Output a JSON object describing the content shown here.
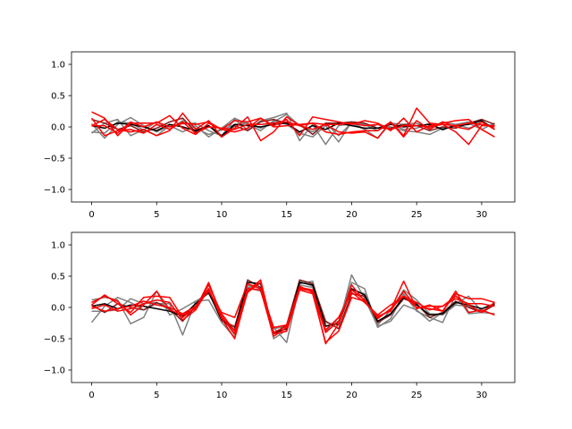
{
  "chart_data": [
    {
      "type": "line",
      "xlim": [
        -1.55,
        32.55
      ],
      "ylim": [
        -1.2,
        1.2
      ],
      "xticks": [
        0,
        5,
        10,
        15,
        20,
        25,
        30
      ],
      "yticks": [
        1.0,
        0.5,
        0.0,
        -0.5,
        -1.0
      ],
      "xtick_labels": [
        "0",
        "5",
        "10",
        "15",
        "20",
        "25",
        "30"
      ],
      "ytick_labels": [
        "1.0",
        "0.5",
        "0.0",
        "−0.5",
        "−1.0"
      ],
      "grid": false,
      "series": [
        {
          "color": "#7f7f7f",
          "values": [
            -0.08,
            -0.1,
            0.08,
            0.06,
            -0.05,
            0.08,
            -0.04,
            0.1,
            -0.02,
            -0.12,
            -0.05,
            0.04,
            0.06,
            -0.02,
            0.08,
            0.2,
            0.02,
            -0.08,
            0.06,
            -0.14,
            0.06,
            0.04,
            -0.06,
            0.05,
            -0.04,
            -0.02,
            0.06,
            -0.05,
            0.04,
            -0.02,
            0.04,
            0.02
          ]
        },
        {
          "color": "#7f7f7f",
          "values": [
            0.05,
            -0.18,
            0.04,
            0.15,
            0.02,
            -0.08,
            0.02,
            0.05,
            0.06,
            -0.06,
            -0.14,
            0.12,
            -0.05,
            0.1,
            0.15,
            0.22,
            -0.22,
            0.04,
            -0.28,
            0.02,
            0.05,
            -0.04,
            -0.18,
            0.06,
            0.04,
            0.06,
            -0.02,
            0.08,
            0.04,
            0.08,
            0.04,
            0.0
          ]
        },
        {
          "color": "#7f7f7f",
          "values": [
            -0.1,
            0.06,
            0.12,
            -0.14,
            -0.04,
            -0.14,
            0.02,
            -0.08,
            0.02,
            -0.16,
            -0.02,
            0.14,
            0.04,
            -0.06,
            0.1,
            0.04,
            -0.1,
            -0.16,
            0.02,
            -0.24,
            0.08,
            -0.04,
            0.04,
            0.0,
            -0.06,
            -0.08,
            -0.12,
            -0.02,
            0.02,
            0.06,
            -0.04,
            0.06
          ]
        },
        {
          "color": "#7f1f1f",
          "values": [
            0.12,
            0.06,
            -0.04,
            0.02,
            -0.08,
            -0.02,
            0.08,
            0.14,
            -0.08,
            0.02,
            -0.16,
            0.02,
            -0.06,
            0.08,
            0.12,
            0.06,
            0.04,
            -0.12,
            0.06,
            0.06,
            0.08,
            0.06,
            -0.02,
            -0.02,
            0.04,
            0.02,
            -0.06,
            0.0,
            -0.02,
            0.06,
            0.12,
            0.04
          ]
        },
        {
          "color": "#000000",
          "values": [
            0.02,
            -0.02,
            0.06,
            0.04,
            0.0,
            -0.06,
            0.04,
            0.0,
            -0.06,
            0.02,
            -0.14,
            0.04,
            0.02,
            0.0,
            0.04,
            0.06,
            -0.08,
            0.02,
            -0.04,
            0.06,
            0.02,
            -0.02,
            -0.02,
            0.04,
            0.0,
            0.02,
            0.04,
            -0.04,
            0.02,
            0.04,
            0.1,
            -0.04
          ]
        },
        {
          "color": "#ff0000",
          "values": [
            0.24,
            0.14,
            -0.14,
            0.06,
            0.06,
            0.06,
            0.18,
            -0.02,
            -0.12,
            0.06,
            -0.04,
            0.1,
            0.08,
            0.14,
            0.02,
            0.12,
            -0.14,
            0.16,
            0.12,
            0.08,
            0.04,
            0.1,
            0.06,
            -0.06,
            0.14,
            -0.08,
            0.02,
            0.06,
            0.1,
            0.12,
            -0.04,
            -0.16
          ]
        },
        {
          "color": "#ff0000",
          "values": [
            0.02,
            0.12,
            -0.04,
            -0.08,
            -0.04,
            -0.14,
            -0.06,
            0.22,
            -0.04,
            0.1,
            -0.16,
            -0.02,
            0.16,
            -0.22,
            -0.08,
            0.16,
            0.02,
            -0.04,
            0.04,
            -0.08,
            -0.1,
            -0.08,
            -0.18,
            0.08,
            -0.14,
            0.3,
            0.06,
            0.04,
            -0.08,
            -0.28,
            0.02,
            0.02
          ]
        },
        {
          "color": "#ff0000",
          "values": [
            0.14,
            -0.14,
            -0.06,
            -0.04,
            -0.1,
            0.04,
            -0.04,
            0.08,
            -0.1,
            0.0,
            -0.02,
            -0.04,
            0.04,
            0.04,
            0.06,
            0.08,
            0.02,
            0.06,
            -0.08,
            -0.12,
            -0.08,
            -0.06,
            -0.06,
            0.08,
            -0.16,
            0.1,
            -0.04,
            0.08,
            0.0,
            -0.04,
            0.08,
            -0.04
          ]
        },
        {
          "color": "#ff0000",
          "values": [
            0.02,
            0.02,
            -0.1,
            0.08,
            0.0,
            0.08,
            0.0,
            0.06,
            0.04,
            0.08,
            -0.04,
            -0.08,
            -0.02,
            0.14,
            0.0,
            0.02,
            0.04,
            0.06,
            0.04,
            0.04,
            0.06,
            0.02,
            0.04,
            -0.04,
            0.02,
            0.02,
            0.0,
            0.04,
            0.02,
            0.06,
            0.04,
            0.0
          ]
        }
      ]
    },
    {
      "type": "line",
      "xlim": [
        -1.55,
        32.55
      ],
      "ylim": [
        -1.2,
        1.2
      ],
      "xticks": [
        0,
        5,
        10,
        15,
        20,
        25,
        30
      ],
      "yticks": [
        1.0,
        0.5,
        0.0,
        -0.5,
        -1.0
      ],
      "xtick_labels": [
        "0",
        "5",
        "10",
        "15",
        "20",
        "25",
        "30"
      ],
      "ytick_labels": [
        "1.0",
        "0.5",
        "0.0",
        "−0.5",
        "−1.0"
      ],
      "grid": false,
      "series": [
        {
          "color": "#7f7f7f",
          "values": [
            0.12,
            0.16,
            0.12,
            -0.26,
            -0.16,
            0.26,
            -0.12,
            -0.02,
            0.1,
            0.12,
            -0.24,
            -0.48,
            0.36,
            0.3,
            -0.32,
            -0.56,
            0.36,
            0.32,
            -0.24,
            -0.28,
            0.52,
            0.14,
            -0.3,
            -0.22,
            0.04,
            -0.04,
            -0.22,
            -0.08,
            0.06,
            0.18,
            -0.06,
            0.04
          ]
        },
        {
          "color": "#7f7f7f",
          "values": [
            -0.24,
            0.02,
            0.16,
            0.08,
            -0.04,
            0.06,
            0.06,
            -0.44,
            0.1,
            0.22,
            -0.14,
            -0.44,
            0.32,
            0.38,
            -0.5,
            -0.36,
            0.38,
            0.42,
            -0.3,
            -0.22,
            0.4,
            0.3,
            -0.32,
            -0.18,
            0.22,
            -0.06,
            -0.16,
            -0.24,
            0.2,
            -0.1,
            -0.08,
            -0.1
          ]
        },
        {
          "color": "#7f7f7f",
          "values": [
            -0.06,
            -0.06,
            -0.04,
            0.14,
            0.06,
            0.08,
            -0.04,
            -0.14,
            0.0,
            0.26,
            -0.22,
            -0.3,
            0.32,
            0.26,
            -0.34,
            -0.3,
            0.42,
            0.34,
            -0.38,
            -0.16,
            0.28,
            0.22,
            -0.28,
            -0.04,
            0.28,
            0.12,
            -0.1,
            -0.12,
            0.04,
            0.02,
            -0.06,
            0.06
          ]
        },
        {
          "color": "#7f1f1f",
          "values": [
            0.04,
            -0.08,
            0.06,
            0.0,
            -0.04,
            0.08,
            -0.02,
            -0.22,
            0.02,
            0.3,
            -0.18,
            -0.32,
            0.44,
            0.32,
            -0.42,
            -0.28,
            0.44,
            0.38,
            -0.22,
            -0.34,
            0.22,
            0.18,
            -0.24,
            -0.12,
            0.14,
            0.06,
            -0.16,
            -0.08,
            0.1,
            0.0,
            -0.08,
            0.04
          ]
        },
        {
          "color": "#000000",
          "values": [
            0.02,
            0.06,
            -0.02,
            0.04,
            0.02,
            -0.02,
            -0.06,
            -0.14,
            0.06,
            0.24,
            -0.2,
            -0.36,
            0.4,
            0.38,
            -0.4,
            -0.34,
            0.4,
            0.36,
            -0.3,
            -0.26,
            0.3,
            0.2,
            -0.22,
            -0.1,
            0.16,
            0.04,
            -0.12,
            -0.1,
            0.08,
            0.04,
            -0.02,
            0.06
          ]
        },
        {
          "color": "#ff0000",
          "values": [
            0.04,
            0.2,
            0.06,
            -0.08,
            0.16,
            0.18,
            0.16,
            -0.16,
            0.0,
            0.36,
            -0.1,
            -0.38,
            0.3,
            0.28,
            -0.46,
            -0.32,
            0.3,
            0.26,
            -0.58,
            -0.26,
            0.36,
            0.1,
            -0.16,
            -0.04,
            0.42,
            -0.02,
            0.04,
            -0.06,
            0.22,
            0.14,
            0.14,
            0.08
          ]
        },
        {
          "color": "#ff0000",
          "values": [
            0.08,
            0.18,
            0.1,
            -0.12,
            0.04,
            0.26,
            -0.04,
            -0.12,
            -0.02,
            0.4,
            -0.14,
            -0.42,
            0.24,
            0.4,
            -0.4,
            -0.3,
            0.34,
            0.24,
            -0.4,
            -0.22,
            0.28,
            0.12,
            -0.18,
            -0.02,
            0.18,
            0.08,
            -0.04,
            0.02,
            0.18,
            0.04,
            -0.08,
            0.08
          ]
        },
        {
          "color": "#ff0000",
          "values": [
            -0.02,
            0.04,
            -0.06,
            -0.02,
            0.06,
            0.12,
            0.08,
            -0.2,
            -0.04,
            0.3,
            -0.18,
            -0.5,
            0.26,
            0.44,
            -0.42,
            -0.38,
            0.28,
            0.22,
            -0.56,
            -0.38,
            0.16,
            0.1,
            -0.14,
            -0.06,
            0.26,
            0.0,
            -0.02,
            -0.06,
            0.26,
            -0.08,
            -0.04,
            -0.12
          ]
        },
        {
          "color": "#ff0000",
          "values": [
            0.02,
            -0.06,
            -0.02,
            0.02,
            0.1,
            0.04,
            0.0,
            -0.1,
            0.02,
            0.26,
            -0.08,
            -0.16,
            0.38,
            0.3,
            -0.32,
            -0.28,
            0.32,
            0.28,
            -0.36,
            -0.16,
            0.24,
            0.08,
            -0.12,
            0.04,
            0.18,
            0.0,
            0.02,
            0.02,
            0.14,
            0.06,
            0.06,
            0.02
          ]
        }
      ]
    }
  ]
}
